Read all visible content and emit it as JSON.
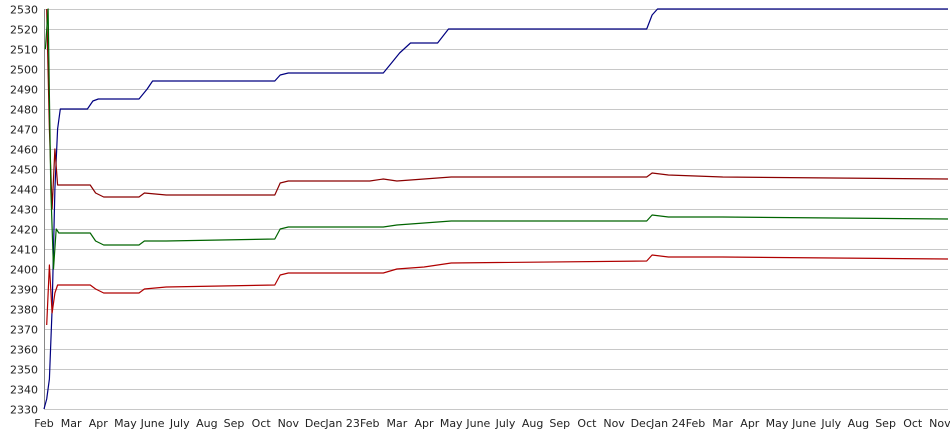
{
  "chart_data": {
    "type": "line",
    "title": "",
    "xlabel": "",
    "ylabel": "",
    "ylim": [
      2330,
      2530
    ],
    "yticks": [
      2330,
      2340,
      2350,
      2360,
      2370,
      2380,
      2390,
      2400,
      2410,
      2420,
      2430,
      2440,
      2450,
      2460,
      2470,
      2480,
      2490,
      2500,
      2510,
      2520,
      2530
    ],
    "grid": true,
    "legend": "none",
    "x_tick_labels": [
      "Feb",
      "Mar",
      "Apr",
      "May",
      "June",
      "July",
      "Aug",
      "Sep",
      "Oct",
      "Nov",
      "Dec",
      "Jan 23",
      "Feb",
      "Mar",
      "Apr",
      "May",
      "June",
      "July",
      "Aug",
      "Sep",
      "Oct",
      "Nov",
      "Dec",
      "Jan 24",
      "Feb",
      "Mar",
      "Apr",
      "May",
      "June",
      "July",
      "Aug",
      "Sep",
      "Oct",
      "Nov"
    ],
    "x_tick_months": [
      0,
      1,
      2,
      3,
      4,
      5,
      6,
      7,
      8,
      9,
      10,
      11,
      12,
      13,
      14,
      15,
      16,
      17,
      18,
      19,
      20,
      21,
      22,
      23,
      24,
      25,
      26,
      27,
      28,
      29,
      30,
      31,
      32,
      33
    ],
    "x_range_months": [
      0,
      33.3
    ],
    "series": [
      {
        "color": "#000080",
        "points": [
          [
            0,
            2330
          ],
          [
            0.1,
            2335
          ],
          [
            0.2,
            2345
          ],
          [
            0.3,
            2380
          ],
          [
            0.4,
            2440
          ],
          [
            0.5,
            2470
          ],
          [
            0.6,
            2480
          ],
          [
            1,
            2480
          ],
          [
            1.6,
            2480
          ],
          [
            1.8,
            2484
          ],
          [
            2,
            2485
          ],
          [
            3.5,
            2485
          ],
          [
            3.8,
            2490
          ],
          [
            4,
            2494
          ],
          [
            8.5,
            2494
          ],
          [
            8.7,
            2497
          ],
          [
            9,
            2498
          ],
          [
            12.5,
            2498
          ],
          [
            12.8,
            2503
          ],
          [
            13.1,
            2508
          ],
          [
            13.5,
            2513
          ],
          [
            14.5,
            2513
          ],
          [
            14.9,
            2520
          ],
          [
            22.2,
            2520
          ],
          [
            22.4,
            2527
          ],
          [
            22.6,
            2530
          ],
          [
            33.3,
            2530
          ]
        ]
      },
      {
        "color": "#8b0000",
        "points": [
          [
            0.1,
            2530
          ],
          [
            0.2,
            2470
          ],
          [
            0.3,
            2430
          ],
          [
            0.4,
            2460
          ],
          [
            0.5,
            2442
          ],
          [
            1,
            2442
          ],
          [
            1.7,
            2442
          ],
          [
            1.9,
            2438
          ],
          [
            2.2,
            2436
          ],
          [
            3.5,
            2436
          ],
          [
            3.7,
            2438
          ],
          [
            4.5,
            2437
          ],
          [
            8.5,
            2437
          ],
          [
            8.7,
            2443
          ],
          [
            9,
            2444
          ],
          [
            12,
            2444
          ],
          [
            12.5,
            2445
          ],
          [
            13,
            2444
          ],
          [
            14,
            2445
          ],
          [
            15,
            2446
          ],
          [
            22.2,
            2446
          ],
          [
            22.4,
            2448
          ],
          [
            23,
            2447
          ],
          [
            25,
            2446
          ],
          [
            33.3,
            2445
          ]
        ]
      },
      {
        "color": "#006400",
        "points": [
          [
            0.05,
            2510
          ],
          [
            0.15,
            2530
          ],
          [
            0.25,
            2440
          ],
          [
            0.35,
            2400
          ],
          [
            0.45,
            2420
          ],
          [
            0.55,
            2418
          ],
          [
            1,
            2418
          ],
          [
            1.7,
            2418
          ],
          [
            1.9,
            2414
          ],
          [
            2.2,
            2412
          ],
          [
            3.5,
            2412
          ],
          [
            3.7,
            2414
          ],
          [
            4.5,
            2414
          ],
          [
            8.5,
            2415
          ],
          [
            8.7,
            2420
          ],
          [
            9,
            2421
          ],
          [
            12,
            2421
          ],
          [
            12.5,
            2421
          ],
          [
            13,
            2422
          ],
          [
            14,
            2423
          ],
          [
            15,
            2424
          ],
          [
            22.2,
            2424
          ],
          [
            22.4,
            2427
          ],
          [
            23,
            2426
          ],
          [
            25,
            2426
          ],
          [
            33.3,
            2425
          ]
        ]
      },
      {
        "color": "#b00000",
        "points": [
          [
            0.1,
            2372
          ],
          [
            0.2,
            2402
          ],
          [
            0.3,
            2378
          ],
          [
            0.4,
            2388
          ],
          [
            0.5,
            2392
          ],
          [
            1,
            2392
          ],
          [
            1.7,
            2392
          ],
          [
            1.9,
            2390
          ],
          [
            2.2,
            2388
          ],
          [
            3.5,
            2388
          ],
          [
            3.7,
            2390
          ],
          [
            4.5,
            2391
          ],
          [
            8.5,
            2392
          ],
          [
            8.7,
            2397
          ],
          [
            9,
            2398
          ],
          [
            12,
            2398
          ],
          [
            12.5,
            2398
          ],
          [
            13,
            2400
          ],
          [
            14,
            2401
          ],
          [
            15,
            2403
          ],
          [
            22.2,
            2404
          ],
          [
            22.4,
            2407
          ],
          [
            23,
            2406
          ],
          [
            25,
            2406
          ],
          [
            33.3,
            2405
          ]
        ]
      }
    ]
  }
}
